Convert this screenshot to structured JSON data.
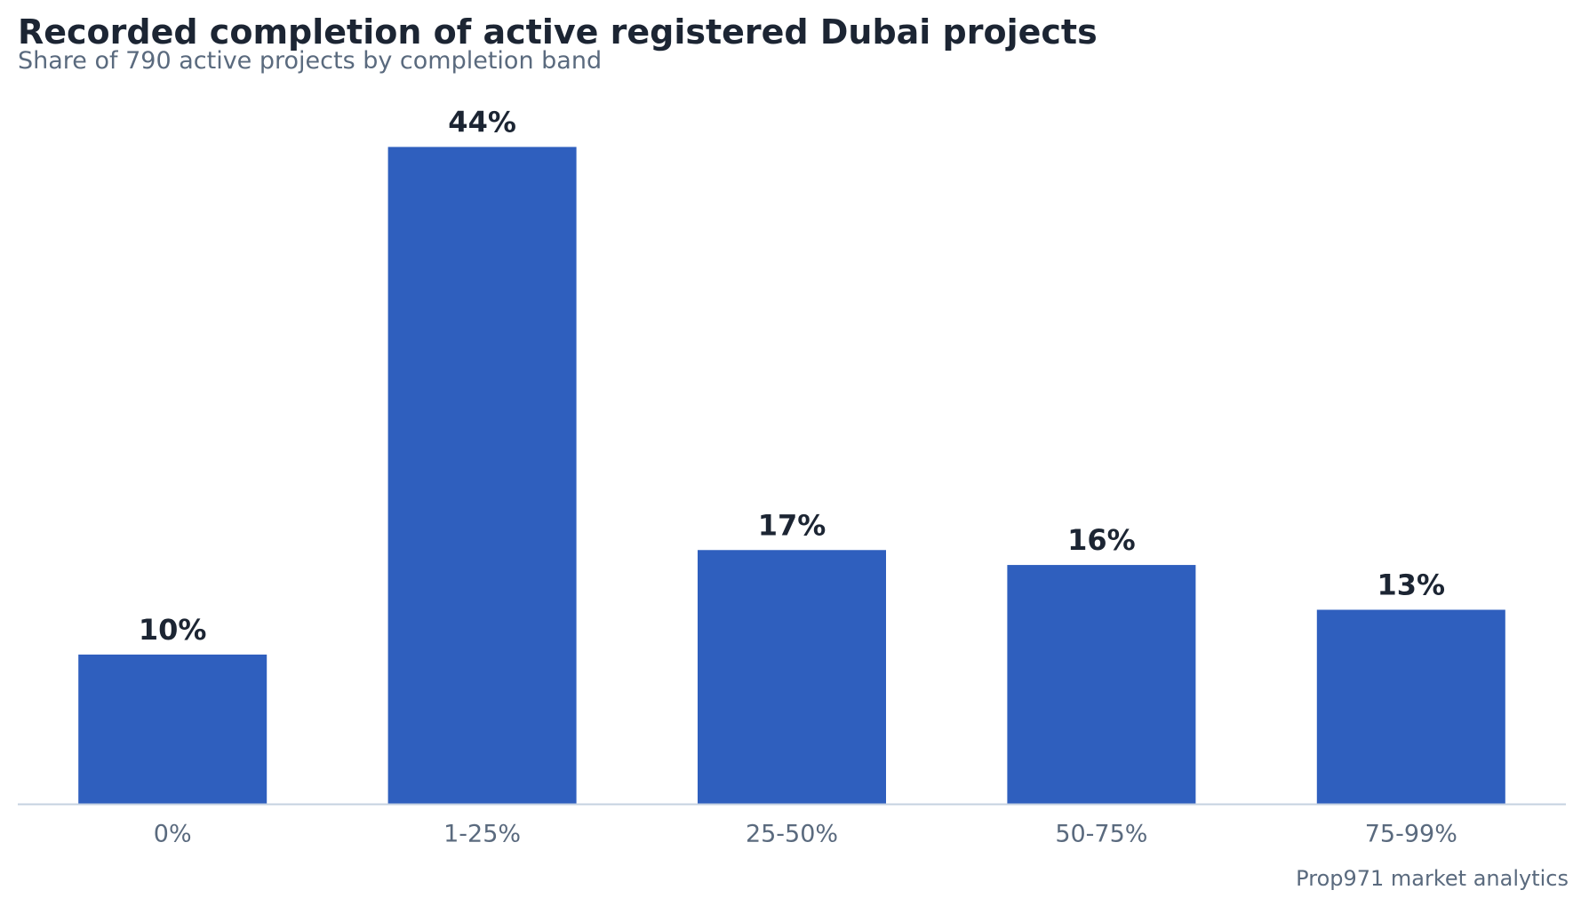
{
  "chart_data": {
    "type": "bar",
    "title": "Recorded completion of active registered Dubai projects",
    "subtitle": "Share of 790 active projects by completion band",
    "categories": [
      "0%",
      "1-25%",
      "25-50%",
      "50-75%",
      "75-99%"
    ],
    "values": [
      10,
      44,
      17,
      16,
      13
    ],
    "value_labels": [
      "10%",
      "44%",
      "17%",
      "16%",
      "13%"
    ],
    "ylim": [
      0,
      47
    ],
    "grid": false,
    "legend": "none",
    "colors": {
      "bar": "#2f5fbe",
      "axis": "#c5d2e0",
      "title": "#1c2533",
      "muted": "#5a6a7e"
    }
  },
  "footer": {
    "source": "Prop971 market analytics"
  }
}
